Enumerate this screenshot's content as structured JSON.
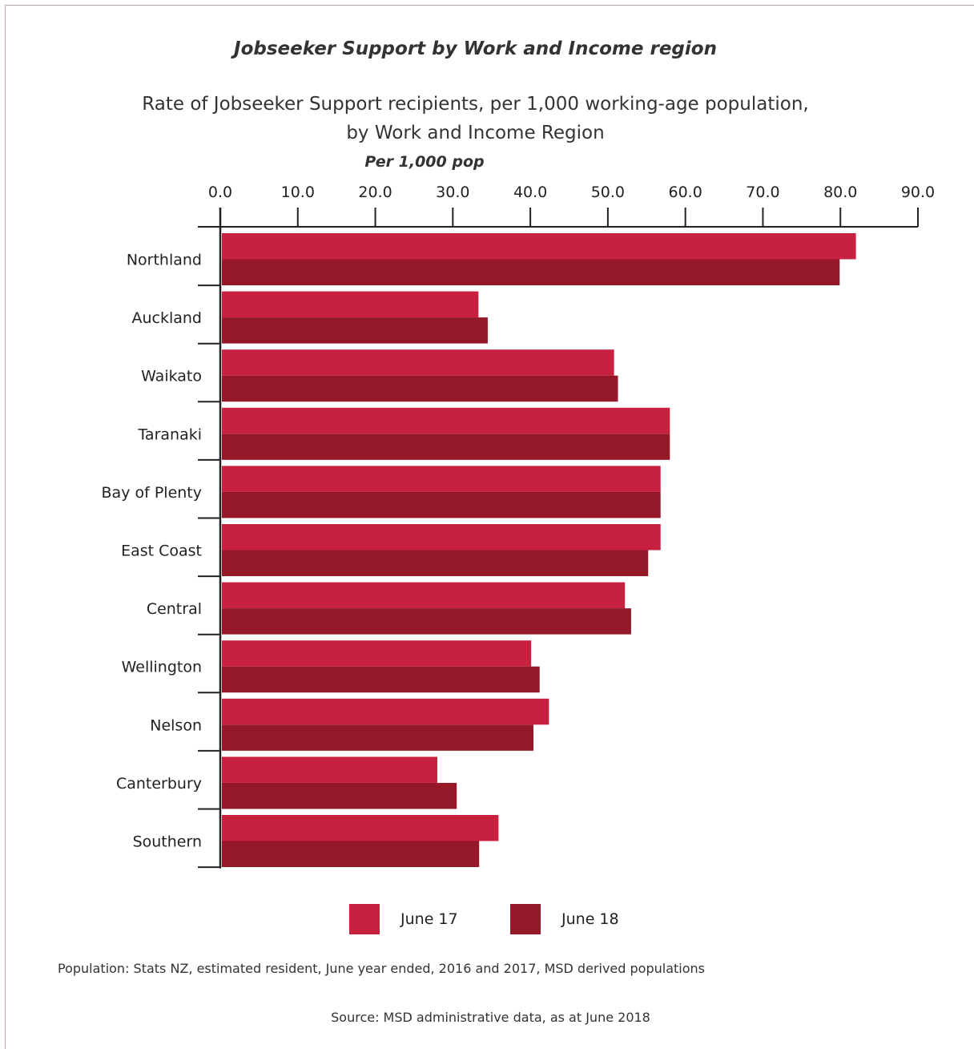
{
  "chart_data": {
    "type": "bar",
    "orientation": "horizontal",
    "title": "Jobseeker Support by Work and Income region",
    "subtitle_line1": "Rate of Jobseeker Support recipients, per 1,000 working-age population,",
    "subtitle_line2": "by Work and Income Region",
    "xlabel": "Per 1,000 pop",
    "xlim": [
      0,
      90
    ],
    "ticks": [
      "0.0",
      "10.0",
      "20.0",
      "30.0",
      "40.0",
      "50.0",
      "60.0",
      "70.0",
      "80.0",
      "90.0"
    ],
    "categories": [
      "Northland",
      "Auckland",
      "Waikato",
      "Taranaki",
      "Bay of Plenty",
      "East Coast",
      "Central",
      "Wellington",
      "Nelson",
      "Canterbury",
      "Southern"
    ],
    "series": [
      {
        "name": "June 17",
        "color": "#c8203f",
        "values": [
          82.0,
          33.3,
          50.8,
          58.0,
          56.8,
          56.8,
          52.2,
          40.1,
          42.4,
          28.0,
          35.9
        ]
      },
      {
        "name": "June 18",
        "color": "#951828",
        "values": [
          79.9,
          34.5,
          51.3,
          58.0,
          56.8,
          55.2,
          53.0,
          41.2,
          40.4,
          30.5,
          33.4
        ]
      }
    ],
    "legend_position": "bottom",
    "grid": false
  },
  "notes": {
    "population": "Population: Stats NZ, estimated resident, June year ended, 2016 and 2017, MSD derived populations",
    "source": "Source: MSD administrative data, as at June 2018"
  }
}
